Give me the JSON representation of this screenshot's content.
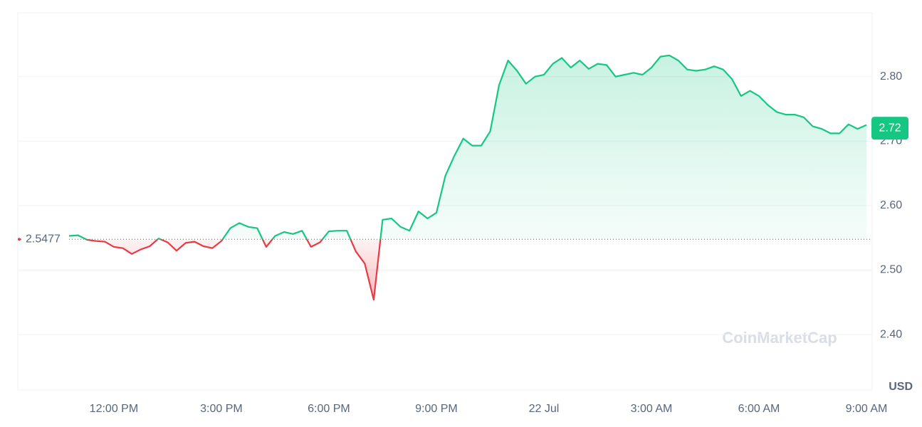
{
  "chart_data": {
    "type": "line",
    "categories": [
      null,
      null,
      null,
      null,
      null,
      "12:00 PM",
      null,
      null,
      null,
      null,
      null,
      null,
      null,
      null,
      null,
      null,
      null,
      "3:00 PM",
      null,
      null,
      null,
      null,
      null,
      null,
      null,
      null,
      null,
      null,
      null,
      "6:00 PM",
      null,
      null,
      null,
      null,
      null,
      null,
      null,
      null,
      null,
      null,
      null,
      "9:00 PM",
      null,
      null,
      null,
      null,
      null,
      null,
      null,
      null,
      null,
      null,
      null,
      "22 Jul",
      null,
      null,
      null,
      null,
      null,
      null,
      null,
      null,
      null,
      null,
      null,
      "3:00 AM",
      null,
      null,
      null,
      null,
      null,
      null,
      null,
      null,
      null,
      null,
      null,
      "6:00 AM",
      null,
      null,
      null,
      null,
      null,
      null,
      null,
      null,
      null,
      null,
      null,
      "9:00 AM"
    ],
    "values": [
      2.553,
      2.554,
      2.547,
      2.545,
      2.544,
      2.536,
      2.534,
      2.525,
      2.532,
      2.537,
      2.549,
      2.543,
      2.53,
      2.542,
      2.544,
      2.537,
      2.534,
      2.545,
      2.565,
      2.573,
      2.567,
      2.565,
      2.536,
      2.553,
      2.559,
      2.556,
      2.561,
      2.536,
      2.543,
      2.56,
      2.561,
      2.561,
      2.529,
      2.51,
      2.454,
      2.578,
      2.58,
      2.567,
      2.561,
      2.591,
      2.58,
      2.589,
      2.646,
      2.677,
      2.704,
      2.693,
      2.693,
      2.715,
      2.787,
      2.825,
      2.809,
      2.789,
      2.8,
      2.803,
      2.82,
      2.829,
      2.814,
      2.825,
      2.812,
      2.82,
      2.818,
      2.8,
      2.803,
      2.806,
      2.803,
      2.814,
      2.831,
      2.833,
      2.825,
      2.811,
      2.809,
      2.811,
      2.816,
      2.811,
      2.796,
      2.77,
      2.778,
      2.77,
      2.756,
      2.745,
      2.741,
      2.741,
      2.737,
      2.723,
      2.719,
      2.712,
      2.712,
      2.726,
      2.719,
      2.725
    ],
    "color_up": "#16c784",
    "color_down": "#ea3943",
    "baseline": 2.5477,
    "current_price": 2.72,
    "currency": "USD",
    "watermark": "CoinMarketCap",
    "ylim": [
      2.314,
      2.899
    ],
    "yticks": [
      {
        "value": 2.4,
        "label": "2.40"
      },
      {
        "value": 2.5,
        "label": "2.50"
      },
      {
        "value": 2.6,
        "label": "2.60"
      },
      {
        "value": 2.7,
        "label": "2.70"
      },
      {
        "value": 2.8,
        "label": "2.80"
      }
    ],
    "grid": true
  }
}
